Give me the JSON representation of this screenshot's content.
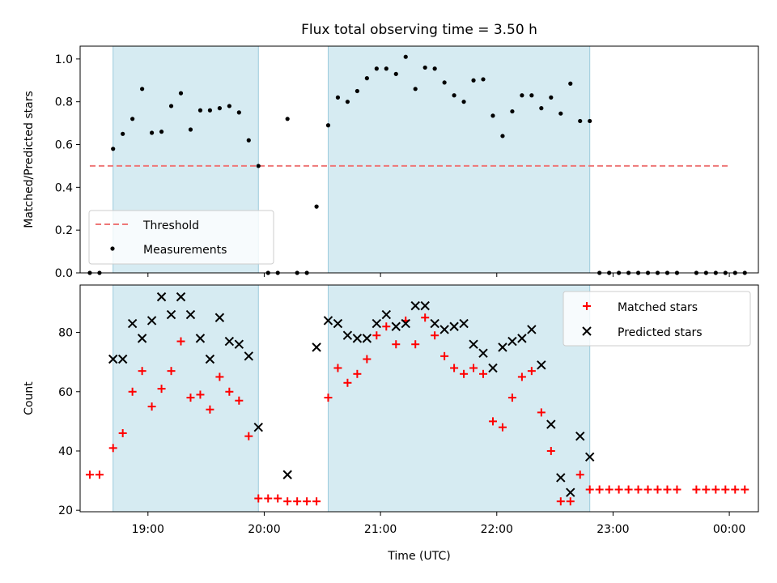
{
  "title": "Flux total observing time = 3.50 h",
  "xlabel": "Time (UTC)",
  "chart_data": [
    {
      "type": "scatter",
      "title": "Flux total observing time = 3.50 h",
      "xlabel": "",
      "ylabel": "Matched/Predicted stars",
      "xlim": [
        "18:25",
        "00:15"
      ],
      "ylim": [
        0,
        1.06
      ],
      "yticks": [
        0.0,
        0.2,
        0.4,
        0.6,
        0.8,
        1.0
      ],
      "yticklabels": [
        "0.0",
        "0.2",
        "0.4",
        "0.6",
        "0.8",
        "1.0"
      ],
      "shaded_spans": [
        [
          "18:42",
          "19:57"
        ],
        [
          "20:33",
          "22:48"
        ]
      ],
      "threshold": {
        "name": "Threshold",
        "value": 0.5,
        "x_range": [
          "18:30",
          "00:00"
        ],
        "color": "#ee7777"
      },
      "legend": {
        "position": "lower-left",
        "entries": [
          "Threshold",
          "Measurements"
        ]
      },
      "series": [
        {
          "name": "Measurements",
          "color": "#000000",
          "marker": "dot",
          "points": [
            [
              "18:30",
              0.0
            ],
            [
              "18:35",
              0.0
            ],
            [
              "18:42",
              0.58
            ],
            [
              "18:47",
              0.65
            ],
            [
              "18:52",
              0.72
            ],
            [
              "18:57",
              0.86
            ],
            [
              "19:02",
              0.655
            ],
            [
              "19:07",
              0.66
            ],
            [
              "19:12",
              0.78
            ],
            [
              "19:17",
              0.84
            ],
            [
              "19:22",
              0.67
            ],
            [
              "19:27",
              0.76
            ],
            [
              "19:32",
              0.76
            ],
            [
              "19:37",
              0.77
            ],
            [
              "19:42",
              0.78
            ],
            [
              "19:47",
              0.75
            ],
            [
              "19:52",
              0.62
            ],
            [
              "19:57",
              0.5
            ],
            [
              "20:02",
              0.0
            ],
            [
              "20:07",
              0.0
            ],
            [
              "20:12",
              0.72
            ],
            [
              "20:17",
              0.0
            ],
            [
              "20:22",
              0.0
            ],
            [
              "20:27",
              0.31
            ],
            [
              "20:33",
              0.69
            ],
            [
              "20:38",
              0.82
            ],
            [
              "20:43",
              0.8
            ],
            [
              "20:48",
              0.85
            ],
            [
              "20:53",
              0.91
            ],
            [
              "20:58",
              0.955
            ],
            [
              "21:03",
              0.955
            ],
            [
              "21:08",
              0.93
            ],
            [
              "21:13",
              1.01
            ],
            [
              "21:18",
              0.86
            ],
            [
              "21:23",
              0.96
            ],
            [
              "21:28",
              0.955
            ],
            [
              "21:33",
              0.89
            ],
            [
              "21:38",
              0.83
            ],
            [
              "21:43",
              0.8
            ],
            [
              "21:48",
              0.9
            ],
            [
              "21:53",
              0.905
            ],
            [
              "21:58",
              0.735
            ],
            [
              "22:03",
              0.64
            ],
            [
              "22:08",
              0.755
            ],
            [
              "22:13",
              0.83
            ],
            [
              "22:18",
              0.83
            ],
            [
              "22:23",
              0.77
            ],
            [
              "22:28",
              0.82
            ],
            [
              "22:33",
              0.745
            ],
            [
              "22:38",
              0.885
            ],
            [
              "22:43",
              0.71
            ],
            [
              "22:48",
              0.71
            ],
            [
              "22:53",
              0.0
            ],
            [
              "22:58",
              0.0
            ],
            [
              "23:03",
              0.0
            ],
            [
              "23:08",
              0.0
            ],
            [
              "23:13",
              0.0
            ],
            [
              "23:18",
              0.0
            ],
            [
              "23:23",
              0.0
            ],
            [
              "23:28",
              0.0
            ],
            [
              "23:33",
              0.0
            ],
            [
              "23:43",
              0.0
            ],
            [
              "23:48",
              0.0
            ],
            [
              "23:53",
              0.0
            ],
            [
              "23:58",
              0.0
            ],
            [
              "00:03",
              0.0
            ],
            [
              "00:08",
              0.0
            ]
          ]
        }
      ]
    },
    {
      "type": "scatter",
      "xlabel": "Time (UTC)",
      "ylabel": "Count",
      "xlim": [
        "18:25",
        "00:15"
      ],
      "ylim": [
        19.5,
        96
      ],
      "yticks": [
        20,
        40,
        60,
        80
      ],
      "xticks": [
        "19:00",
        "20:00",
        "21:00",
        "22:00",
        "23:00",
        "00:00"
      ],
      "shaded_spans": [
        [
          "18:42",
          "19:57"
        ],
        [
          "20:33",
          "22:48"
        ]
      ],
      "legend": {
        "position": "upper-right",
        "entries": [
          "Matched stars",
          "Predicted stars"
        ]
      },
      "series": [
        {
          "name": "Matched stars",
          "color": "#ff0000",
          "marker": "plus",
          "points": [
            [
              "18:30",
              32
            ],
            [
              "18:35",
              32
            ],
            [
              "18:42",
              41
            ],
            [
              "18:47",
              46
            ],
            [
              "18:52",
              60
            ],
            [
              "18:57",
              67
            ],
            [
              "19:02",
              55
            ],
            [
              "19:07",
              61
            ],
            [
              "19:12",
              67
            ],
            [
              "19:17",
              77
            ],
            [
              "19:22",
              58
            ],
            [
              "19:27",
              59
            ],
            [
              "19:32",
              54
            ],
            [
              "19:37",
              65
            ],
            [
              "19:42",
              60
            ],
            [
              "19:47",
              57
            ],
            [
              "19:52",
              45
            ],
            [
              "19:57",
              24
            ],
            [
              "20:02",
              24
            ],
            [
              "20:07",
              24
            ],
            [
              "20:12",
              23
            ],
            [
              "20:17",
              23
            ],
            [
              "20:22",
              23
            ],
            [
              "20:27",
              23
            ],
            [
              "20:33",
              58
            ],
            [
              "20:38",
              68
            ],
            [
              "20:43",
              63
            ],
            [
              "20:48",
              66
            ],
            [
              "20:53",
              71
            ],
            [
              "20:58",
              79
            ],
            [
              "21:03",
              82
            ],
            [
              "21:08",
              76
            ],
            [
              "21:13",
              84
            ],
            [
              "21:18",
              76
            ],
            [
              "21:23",
              85
            ],
            [
              "21:28",
              79
            ],
            [
              "21:33",
              72
            ],
            [
              "21:38",
              68
            ],
            [
              "21:43",
              66
            ],
            [
              "21:48",
              68
            ],
            [
              "21:53",
              66
            ],
            [
              "21:58",
              50
            ],
            [
              "22:03",
              48
            ],
            [
              "22:08",
              58
            ],
            [
              "22:13",
              65
            ],
            [
              "22:18",
              67
            ],
            [
              "22:23",
              53
            ],
            [
              "22:28",
              40
            ],
            [
              "22:33",
              23
            ],
            [
              "22:38",
              23
            ],
            [
              "22:43",
              32
            ],
            [
              "22:48",
              27
            ],
            [
              "22:53",
              27
            ],
            [
              "22:58",
              27
            ],
            [
              "23:03",
              27
            ],
            [
              "23:08",
              27
            ],
            [
              "23:13",
              27
            ],
            [
              "23:18",
              27
            ],
            [
              "23:23",
              27
            ],
            [
              "23:28",
              27
            ],
            [
              "23:33",
              27
            ],
            [
              "23:43",
              27
            ],
            [
              "23:48",
              27
            ],
            [
              "23:53",
              27
            ],
            [
              "23:58",
              27
            ],
            [
              "00:03",
              27
            ],
            [
              "00:08",
              27
            ]
          ]
        },
        {
          "name": "Predicted stars",
          "color": "#000000",
          "marker": "x",
          "points": [
            [
              "18:42",
              71
            ],
            [
              "18:47",
              71
            ],
            [
              "18:52",
              83
            ],
            [
              "18:57",
              78
            ],
            [
              "19:02",
              84
            ],
            [
              "19:07",
              92
            ],
            [
              "19:12",
              86
            ],
            [
              "19:17",
              92
            ],
            [
              "19:22",
              86
            ],
            [
              "19:27",
              78
            ],
            [
              "19:32",
              71
            ],
            [
              "19:37",
              85
            ],
            [
              "19:42",
              77
            ],
            [
              "19:47",
              76
            ],
            [
              "19:52",
              72
            ],
            [
              "19:57",
              48
            ],
            [
              "20:12",
              32
            ],
            [
              "20:27",
              75
            ],
            [
              "20:33",
              84
            ],
            [
              "20:38",
              83
            ],
            [
              "20:43",
              79
            ],
            [
              "20:48",
              78
            ],
            [
              "20:53",
              78
            ],
            [
              "20:58",
              83
            ],
            [
              "21:03",
              86
            ],
            [
              "21:08",
              82
            ],
            [
              "21:13",
              83
            ],
            [
              "21:18",
              89
            ],
            [
              "21:23",
              89
            ],
            [
              "21:28",
              83
            ],
            [
              "21:33",
              81
            ],
            [
              "21:38",
              82
            ],
            [
              "21:43",
              83
            ],
            [
              "21:48",
              76
            ],
            [
              "21:53",
              73
            ],
            [
              "21:58",
              68
            ],
            [
              "22:03",
              75
            ],
            [
              "22:08",
              77
            ],
            [
              "22:13",
              78
            ],
            [
              "22:18",
              81
            ],
            [
              "22:23",
              69
            ],
            [
              "22:28",
              49
            ],
            [
              "22:33",
              31
            ],
            [
              "22:38",
              26
            ],
            [
              "22:43",
              45
            ],
            [
              "22:48",
              38
            ]
          ]
        }
      ]
    }
  ]
}
